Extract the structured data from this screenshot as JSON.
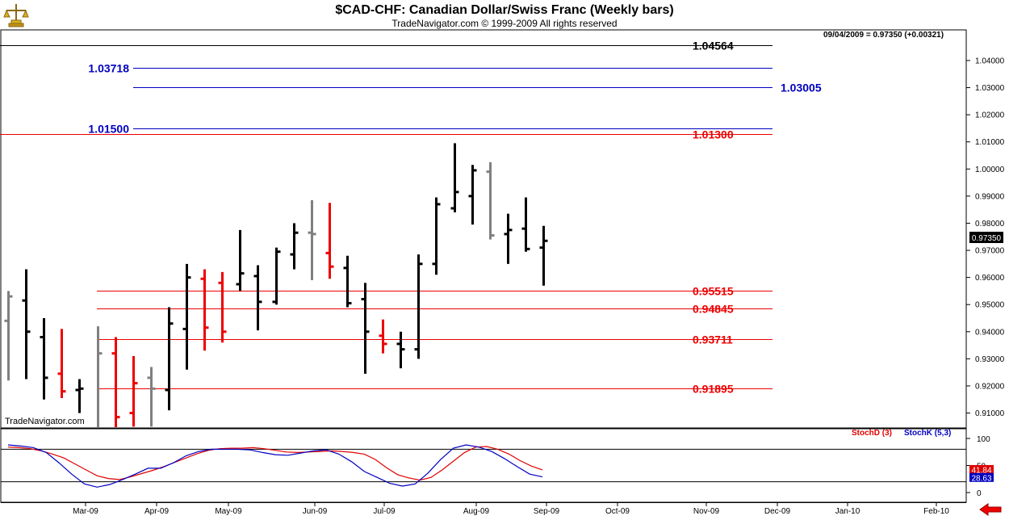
{
  "title": "$CAD-CHF:  Canadian Dollar/Swiss Franc  (Weekly bars)",
  "subtitle": "TradeNavigator.com © 1999-2009 All rights reserved",
  "watermark": "TradeNavigator.com",
  "readout": "09/04/2009 = 0.97350 (+0.00321)",
  "last_price_label": "0.97350",
  "indicator": {
    "stochd_label": "StochD (3)",
    "stochk_label": "StochK (5,3)",
    "stochd_value": "41.84",
    "stochk_value": "28.63",
    "axis_labels": [
      "100",
      "50",
      "0"
    ]
  },
  "colors": {
    "up_bar": "#000000",
    "down_bar": "#ee0000",
    "neutral_bar": "#808080",
    "resistance": "#0000c0",
    "support": "#ee0000",
    "stochd": "#e00000",
    "stochk": "#0000c0"
  },
  "chart_data": {
    "type": "ohlc",
    "x_labels": [
      "Mar-09",
      "Apr-09",
      "May-09",
      "Jun-09",
      "Jul-09",
      "Aug-09",
      "Sep-09",
      "Oct-09",
      "Nov-09",
      "Dec-09",
      "Jan-10",
      "Feb-10"
    ],
    "y_ticks": [
      "1.04000",
      "1.03000",
      "1.02000",
      "1.01000",
      "1.00000",
      "0.99000",
      "0.98000",
      "0.97000",
      "0.96000",
      "0.95000",
      "0.94000",
      "0.93000",
      "0.92000",
      "0.91000"
    ],
    "ylim": [
      0.9045,
      1.0513
    ],
    "horizontal_levels": [
      {
        "value": 1.04564,
        "label": "1.04564",
        "color": "black"
      },
      {
        "value": 1.03718,
        "label": "1.03718",
        "color": "blue"
      },
      {
        "value": 1.03005,
        "label": "1.03005",
        "color": "blue"
      },
      {
        "value": 1.015,
        "label": "1.01500",
        "color": "blue"
      },
      {
        "value": 1.013,
        "label": "1.01300",
        "color": "red"
      },
      {
        "value": 0.95515,
        "label": "0.95515",
        "color": "red"
      },
      {
        "value": 0.94845,
        "label": "0.94845",
        "color": "red"
      },
      {
        "value": 0.93711,
        "label": "0.93711",
        "color": "red"
      },
      {
        "value": 0.91895,
        "label": "0.91895",
        "color": "red"
      }
    ],
    "bars": [
      {
        "h": 0.955,
        "l": 0.922,
        "o": 0.944,
        "c": 0.953,
        "col": "neutral"
      },
      {
        "h": 0.963,
        "l": 0.9225,
        "o": 0.9515,
        "c": 0.94,
        "col": "up"
      },
      {
        "h": 0.945,
        "l": 0.915,
        "o": 0.938,
        "c": 0.923,
        "col": "up"
      },
      {
        "h": 0.941,
        "l": 0.9155,
        "o": 0.9245,
        "c": 0.918,
        "col": "down"
      },
      {
        "h": 0.9225,
        "l": 0.91,
        "o": 0.9185,
        "c": 0.919,
        "col": "up"
      },
      {
        "h": 0.942,
        "l": 0.9,
        "o": 0.902,
        "c": 0.932,
        "col": "neutral"
      },
      {
        "h": 0.938,
        "l": 0.904,
        "o": 0.932,
        "c": 0.9085,
        "col": "down"
      },
      {
        "h": 0.931,
        "l": 0.905,
        "o": 0.91,
        "c": 0.921,
        "col": "down"
      },
      {
        "h": 0.927,
        "l": 0.905,
        "o": 0.923,
        "c": 0.919,
        "col": "neutral"
      },
      {
        "h": 0.949,
        "l": 0.911,
        "o": 0.9185,
        "c": 0.943,
        "col": "up"
      },
      {
        "h": 0.965,
        "l": 0.926,
        "o": 0.941,
        "c": 0.96,
        "col": "up"
      },
      {
        "h": 0.963,
        "l": 0.933,
        "o": 0.9595,
        "c": 0.9415,
        "col": "down"
      },
      {
        "h": 0.962,
        "l": 0.936,
        "o": 0.958,
        "c": 0.94,
        "col": "down"
      },
      {
        "h": 0.9775,
        "l": 0.955,
        "o": 0.9575,
        "c": 0.9615,
        "col": "up"
      },
      {
        "h": 0.9645,
        "l": 0.9405,
        "o": 0.9605,
        "c": 0.951,
        "col": "up"
      },
      {
        "h": 0.971,
        "l": 0.95,
        "o": 0.951,
        "c": 0.9695,
        "col": "up"
      },
      {
        "h": 0.98,
        "l": 0.963,
        "o": 0.9685,
        "c": 0.9765,
        "col": "up"
      },
      {
        "h": 0.9885,
        "l": 0.959,
        "o": 0.9765,
        "c": 0.976,
        "col": "neutral"
      },
      {
        "h": 0.9875,
        "l": 0.9595,
        "o": 0.969,
        "c": 0.964,
        "col": "down"
      },
      {
        "h": 0.968,
        "l": 0.949,
        "o": 0.9635,
        "c": 0.9505,
        "col": "up"
      },
      {
        "h": 0.958,
        "l": 0.9245,
        "o": 0.952,
        "c": 0.94,
        "col": "up"
      },
      {
        "h": 0.9445,
        "l": 0.932,
        "o": 0.9385,
        "c": 0.9355,
        "col": "down"
      },
      {
        "h": 0.94,
        "l": 0.9265,
        "o": 0.9355,
        "c": 0.9335,
        "col": "up"
      },
      {
        "h": 0.9685,
        "l": 0.93,
        "o": 0.9335,
        "c": 0.965,
        "col": "up"
      },
      {
        "h": 0.9895,
        "l": 0.961,
        "o": 0.965,
        "c": 0.987,
        "col": "up"
      },
      {
        "h": 1.0095,
        "l": 0.984,
        "o": 0.9855,
        "c": 0.9915,
        "col": "up"
      },
      {
        "h": 1.0015,
        "l": 0.9795,
        "o": 0.99,
        "c": 0.9995,
        "col": "up"
      },
      {
        "h": 1.0025,
        "l": 0.974,
        "o": 0.999,
        "c": 0.9755,
        "col": "neutral"
      },
      {
        "h": 0.9835,
        "l": 0.965,
        "o": 0.976,
        "c": 0.9775,
        "col": "up"
      },
      {
        "h": 0.9895,
        "l": 0.9695,
        "o": 0.978,
        "c": 0.9705,
        "col": "up"
      },
      {
        "h": 0.979,
        "l": 0.957,
        "o": 0.971,
        "c": 0.9735,
        "col": "up"
      }
    ],
    "stoch_d": [
      84,
      83,
      81,
      77,
      71,
      64,
      53,
      42,
      31,
      26,
      24,
      29,
      35,
      41,
      48,
      56,
      64,
      72,
      78,
      81,
      82,
      82,
      83,
      81,
      78,
      75,
      74,
      75,
      76,
      77,
      76,
      74,
      71,
      61,
      46,
      33,
      27,
      23,
      28,
      42,
      58,
      74,
      84,
      85,
      80,
      71,
      59,
      49,
      42
    ],
    "stoch_k": [
      88,
      86,
      83,
      74,
      55,
      34,
      16,
      10,
      15,
      24,
      34,
      45,
      45,
      55,
      68,
      76,
      80,
      80,
      80,
      79,
      74,
      70,
      69,
      73,
      77,
      79,
      71,
      57,
      39,
      28,
      17,
      12,
      16,
      36,
      61,
      82,
      88,
      84,
      76,
      63,
      48,
      34,
      29
    ]
  }
}
